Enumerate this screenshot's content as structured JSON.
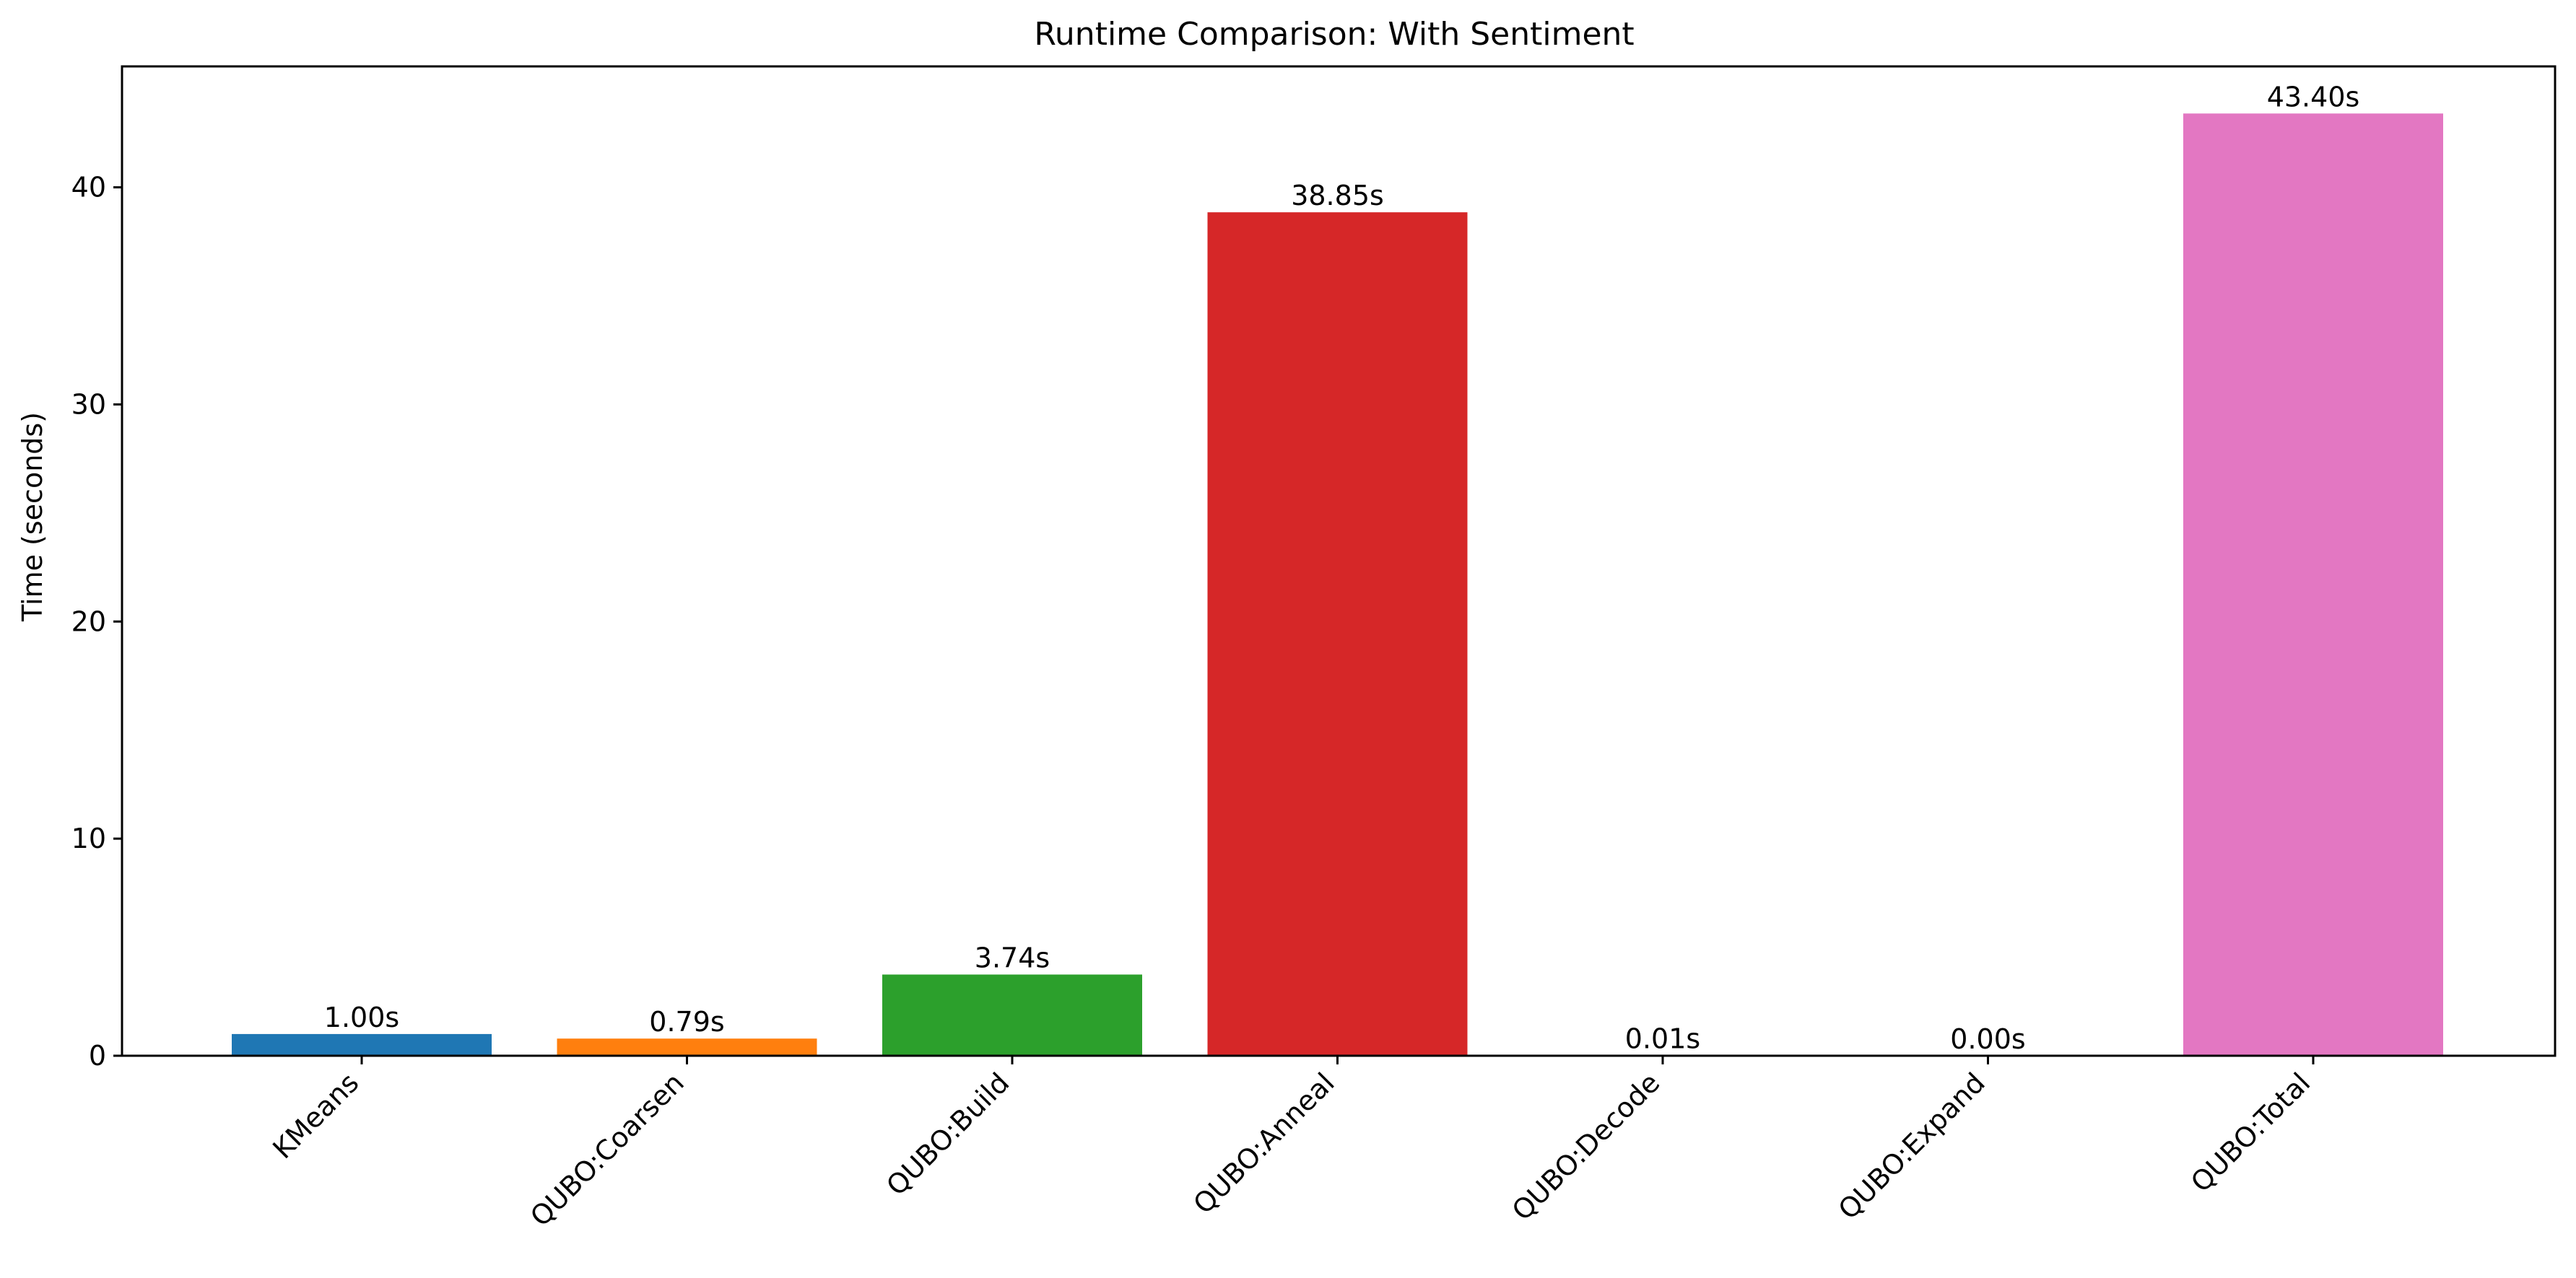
{
  "chart_data": {
    "type": "bar",
    "title": "Runtime Comparison: With Sentiment",
    "xlabel": "",
    "ylabel": "Time (seconds)",
    "categories": [
      "KMeans",
      "QUBO:Coarsen",
      "QUBO:Build",
      "QUBO:Anneal",
      "QUBO:Decode",
      "QUBO:Expand",
      "QUBO:Total"
    ],
    "values": [
      1.0,
      0.79,
      3.74,
      38.85,
      0.01,
      0.0,
      43.4
    ],
    "data_labels": [
      "1.00s",
      "0.79s",
      "3.74s",
      "38.85s",
      "0.01s",
      "0.00s",
      "43.40s"
    ],
    "colors": [
      "#1f77b4",
      "#ff7f0e",
      "#2ca02c",
      "#d62728",
      "#9467bd",
      "#8c564b",
      "#e377c2"
    ],
    "ylim": [
      0,
      45.57
    ],
    "yticks": [
      0,
      10,
      20,
      30,
      40
    ],
    "ytick_labels": [
      "0",
      "10",
      "20",
      "30",
      "40"
    ],
    "grid": false,
    "legend": false
  }
}
